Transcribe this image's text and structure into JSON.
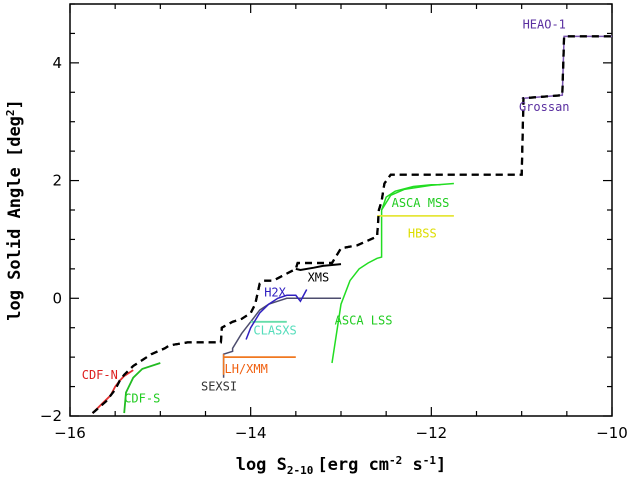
{
  "chart_data": {
    "type": "line",
    "xlabel": "log S",
    "xlabel_sub": "2-10",
    "xlabel_units": "[erg cm",
    "xlabel_sup1": "-2",
    "xlabel_mid": " s",
    "xlabel_sup2": "-1",
    "xlabel_end": "]",
    "ylabel": "log Solid Angle [deg",
    "ylabel_sup": "2",
    "ylabel_end": "]",
    "xlim": [
      -16,
      -10
    ],
    "ylim": [
      -2,
      5
    ],
    "xticks": [
      -16,
      -14,
      -12,
      -10
    ],
    "xtick_labels": [
      "−16",
      "−14",
      "−12",
      "−10"
    ],
    "yticks": [
      -2,
      0,
      2,
      4
    ],
    "ytick_labels": [
      "−2",
      "0",
      "2",
      "4"
    ],
    "grid": false,
    "legend": "none",
    "series": [
      {
        "name": "",
        "key": "total",
        "color": "#000000",
        "dash": "7,5",
        "width": 2.2,
        "x": [
          -15.75,
          -15.6,
          -15.5,
          -15.45,
          -15.4,
          -15.3,
          -15.1,
          -14.95,
          -14.9,
          -14.7,
          -14.33,
          -14.32,
          -14.2,
          -14.1,
          -14.0,
          -13.95,
          -13.9,
          -13.85,
          -13.75,
          -13.5,
          -13.48,
          -13.1,
          -13.0,
          -12.82,
          -12.6,
          -12.58,
          -12.55,
          -12.52,
          -12.45,
          -12.0,
          -11.0,
          -10.98,
          -10.55,
          -10.53,
          -10.0
        ],
        "y": [
          -1.95,
          -1.75,
          -1.55,
          -1.4,
          -1.3,
          -1.15,
          -0.95,
          -0.85,
          -0.8,
          -0.75,
          -0.75,
          -0.5,
          -0.4,
          -0.35,
          -0.25,
          -0.1,
          0.25,
          0.3,
          0.3,
          0.5,
          0.6,
          0.6,
          0.85,
          0.9,
          1.05,
          1.5,
          1.65,
          1.95,
          2.1,
          2.1,
          2.1,
          3.4,
          3.45,
          4.45,
          4.45
        ]
      },
      {
        "name": "",
        "key": "heao1",
        "color": "#7a56b0",
        "dash": "",
        "width": 1.5,
        "x": [
          -11.0,
          -10.98,
          -10.55,
          -10.53,
          -10.0
        ],
        "y": [
          3.4,
          3.4,
          3.45,
          4.45,
          4.45
        ]
      },
      {
        "name": "",
        "key": "cdfn",
        "color": "#e23030",
        "dash": "",
        "width": 1.8,
        "x": [
          -15.75,
          -15.65,
          -15.55,
          -15.5,
          -15.45,
          -15.4,
          -15.3
        ],
        "y": [
          -1.95,
          -1.8,
          -1.65,
          -1.5,
          -1.4,
          -1.32,
          -1.22
        ]
      },
      {
        "name": "",
        "key": "cdfs",
        "color": "#22bb22",
        "dash": "",
        "width": 1.8,
        "x": [
          -15.4,
          -15.38,
          -15.3,
          -15.2,
          -15.0
        ],
        "y": [
          -1.95,
          -1.6,
          -1.35,
          -1.2,
          -1.1
        ]
      },
      {
        "name": "",
        "key": "sexsi",
        "color": "#4d4d6e",
        "dash": "",
        "width": 1.5,
        "x": [
          -14.3,
          -14.3,
          -14.2,
          -14.2,
          -14.1,
          -14.0,
          -13.9,
          -13.8,
          -13.7,
          -13.6,
          -13.5,
          -13.0
        ],
        "y": [
          -1.35,
          -0.95,
          -0.9,
          -0.85,
          -0.6,
          -0.4,
          -0.2,
          -0.1,
          -0.05,
          0.0,
          0.0,
          0.0
        ]
      },
      {
        "name": "",
        "key": "lhxmm",
        "color": "#f07820",
        "dash": "",
        "width": 1.8,
        "x": [
          -14.3,
          -13.5
        ],
        "y": [
          -1.0,
          -1.0
        ]
      },
      {
        "name": "",
        "key": "lhxmm_v",
        "color": "#f07820",
        "dash": "",
        "width": 1.5,
        "x": [
          -14.3,
          -14.3
        ],
        "y": [
          -1.3,
          -0.95
        ]
      },
      {
        "name": "",
        "key": "clasxs",
        "color": "#66ddaa",
        "dash": "",
        "width": 1.8,
        "x": [
          -14.0,
          -13.6
        ],
        "y": [
          -0.4,
          -0.4
        ]
      },
      {
        "name": "",
        "key": "h2x",
        "color": "#3020c0",
        "dash": "",
        "width": 1.5,
        "x": [
          -14.05,
          -14.0,
          -13.9,
          -13.8,
          -13.7,
          -13.6,
          -13.5,
          -13.45,
          -13.38
        ],
        "y": [
          -0.7,
          -0.5,
          -0.25,
          -0.1,
          0.0,
          0.05,
          0.05,
          -0.05,
          0.15
        ]
      },
      {
        "name": "",
        "key": "xms",
        "color": "#000000",
        "dash": "",
        "width": 2.0,
        "x": [
          -13.5,
          -13.45,
          -13.3,
          -13.2,
          -13.0
        ],
        "y": [
          0.5,
          0.48,
          0.52,
          0.55,
          0.58
        ]
      },
      {
        "name": "",
        "key": "ascalss",
        "color": "#22dd22",
        "dash": "",
        "width": 1.5,
        "x": [
          -13.1,
          -13.0,
          -12.9,
          -12.8,
          -12.7,
          -12.6,
          -12.55,
          -12.55,
          -12.5,
          -12.4,
          -12.2,
          -12.0,
          -11.9
        ],
        "y": [
          -1.1,
          -0.1,
          0.3,
          0.5,
          0.6,
          0.68,
          0.7,
          1.5,
          1.72,
          1.82,
          1.9,
          1.93,
          1.93
        ]
      },
      {
        "name": "",
        "key": "ascamss",
        "color": "#22dd22",
        "dash": "",
        "width": 1.5,
        "x": [
          -12.55,
          -12.45,
          -12.3,
          -12.0,
          -11.75
        ],
        "y": [
          1.5,
          1.75,
          1.85,
          1.92,
          1.95
        ]
      },
      {
        "name": "",
        "key": "hbss",
        "color": "#e6e63a",
        "dash": "",
        "width": 1.8,
        "x": [
          -12.6,
          -11.75
        ],
        "y": [
          1.4,
          1.4
        ]
      }
    ],
    "annotations": [
      {
        "key": "heao1",
        "text": "HEAO-1",
        "x": -10.75,
        "y": 4.65,
        "color": "#5a2fa0",
        "anchor": "middle"
      },
      {
        "key": "grossan",
        "text": "Grossan",
        "x": -10.75,
        "y": 3.25,
        "color": "#5a2fa0",
        "anchor": "middle"
      },
      {
        "key": "ascamss",
        "text": "ASCA MSS",
        "x": -12.12,
        "y": 1.62,
        "color": "#22cc22",
        "anchor": "middle"
      },
      {
        "key": "hbss",
        "text": "HBSS",
        "x": -12.1,
        "y": 1.1,
        "color": "#dddd00",
        "anchor": "middle"
      },
      {
        "key": "xms",
        "text": "XMS",
        "x": -13.25,
        "y": 0.35,
        "color": "#000000",
        "anchor": "middle"
      },
      {
        "key": "h2x",
        "text": "H2X",
        "x": -13.73,
        "y": 0.1,
        "color": "#3020c0",
        "anchor": "middle"
      },
      {
        "key": "clasxs",
        "text": "CLASXS",
        "x": -13.73,
        "y": -0.55,
        "color": "#55ddbb",
        "anchor": "middle"
      },
      {
        "key": "ascalss",
        "text": "ASCA LSS",
        "x": -12.75,
        "y": -0.38,
        "color": "#22cc22",
        "anchor": "middle"
      },
      {
        "key": "lhxmm",
        "text": "LH/XMM",
        "x": -14.05,
        "y": -1.2,
        "color": "#f06010",
        "anchor": "middle"
      },
      {
        "key": "sexsi",
        "text": "SEXSI",
        "x": -14.35,
        "y": -1.5,
        "color": "#333333",
        "anchor": "middle"
      },
      {
        "key": "cdfn",
        "text": "CDF-N",
        "x": -15.67,
        "y": -1.3,
        "color": "#dd2020",
        "anchor": "middle"
      },
      {
        "key": "cdfs",
        "text": "CDF-S",
        "x": -15.2,
        "y": -1.7,
        "color": "#22cc22",
        "anchor": "middle"
      }
    ]
  }
}
